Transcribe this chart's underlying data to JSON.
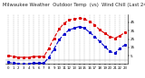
{
  "title": "Milwaukee Weather  Outdoor Temp  (vs)  Wind Chill (Last 24 Hours)",
  "title_fontsize": 3.8,
  "background_color": "#ffffff",
  "grid_color": "#aaaaaa",
  "temp_color": "#dd0000",
  "wind_chill_color": "#0000cc",
  "ylim": [
    -5,
    55
  ],
  "yticks": [
    5,
    15,
    25,
    35,
    45
  ],
  "hours": [
    0,
    1,
    2,
    3,
    4,
    5,
    6,
    7,
    8,
    9,
    10,
    11,
    12,
    13,
    14,
    15,
    16,
    17,
    18,
    19,
    20,
    21,
    22,
    23
  ],
  "temp": [
    5,
    4,
    3,
    3,
    3,
    4,
    4,
    4,
    14,
    26,
    37,
    44,
    48,
    49,
    50,
    49,
    46,
    42,
    36,
    32,
    28,
    26,
    29,
    33
  ],
  "wind_chill": [
    -3,
    -4,
    -5,
    -5,
    -5,
    -4,
    -4,
    -4,
    3,
    13,
    24,
    31,
    36,
    38,
    40,
    38,
    33,
    28,
    22,
    16,
    10,
    8,
    14,
    18
  ],
  "xlim": [
    -0.5,
    23.5
  ],
  "xtick_fontsize": 2.8,
  "ytick_fontsize": 3.0,
  "line_width": 0.8,
  "marker_size": 1.2,
  "legend_fontsize": 3.2
}
